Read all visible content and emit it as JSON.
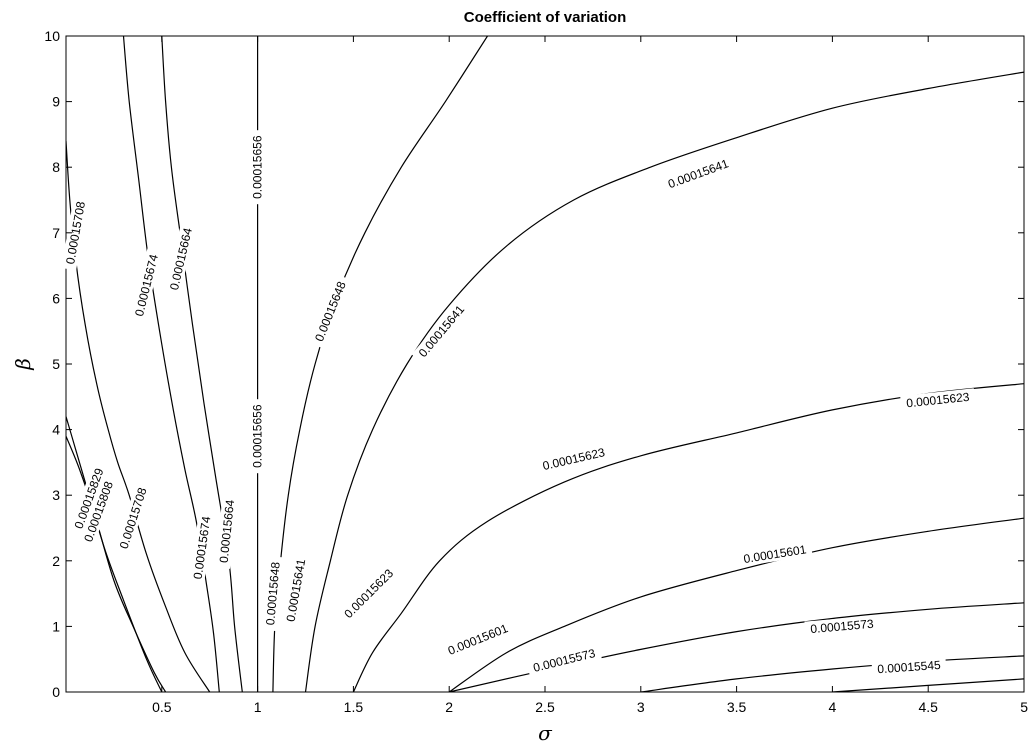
{
  "chart_data": {
    "type": "contour",
    "title": "Coefficient of variation",
    "xlabel": "σ",
    "ylabel": "β",
    "xlim": [
      0,
      5
    ],
    "ylim": [
      0,
      10
    ],
    "x_ticks": [
      "0.5",
      "1",
      "1.5",
      "2",
      "2.5",
      "3",
      "3.5",
      "4",
      "4.5",
      "5"
    ],
    "y_ticks": [
      "0",
      "1",
      "2",
      "3",
      "4",
      "5",
      "6",
      "7",
      "8",
      "9",
      "10"
    ],
    "grid": false,
    "contours": [
      {
        "level": "0.00015829",
        "points": [
          [
            0.0,
            4.2
          ],
          [
            0.05,
            3.7
          ],
          [
            0.1,
            3.2
          ],
          [
            0.2,
            2.2
          ],
          [
            0.3,
            1.4
          ],
          [
            0.42,
            0.5
          ],
          [
            0.5,
            0.0
          ]
        ],
        "labels": [
          {
            "text": "0.00015829",
            "x": 0.12,
            "y": 2.95,
            "angle": 70
          }
        ]
      },
      {
        "level": "0.00015808",
        "points": [
          [
            0.0,
            3.9
          ],
          [
            0.07,
            3.4
          ],
          [
            0.15,
            2.7
          ],
          [
            0.25,
            1.7
          ],
          [
            0.35,
            1.0
          ],
          [
            0.46,
            0.3
          ],
          [
            0.52,
            0.0
          ]
        ],
        "labels": [
          {
            "text": "0.00015808",
            "x": 0.17,
            "y": 2.75,
            "angle": 70
          }
        ]
      },
      {
        "level": "0.00015708",
        "points": [
          [
            0.0,
            8.4
          ],
          [
            0.02,
            7.5
          ],
          [
            0.05,
            6.6
          ],
          [
            0.1,
            5.6
          ],
          [
            0.16,
            4.7
          ],
          [
            0.22,
            4.0
          ],
          [
            0.27,
            3.5
          ],
          [
            0.33,
            3.0
          ],
          [
            0.42,
            2.1
          ],
          [
            0.52,
            1.3
          ],
          [
            0.62,
            0.6
          ],
          [
            0.75,
            0.0
          ]
        ],
        "labels": [
          {
            "text": "0.00015708",
            "x": 0.05,
            "y": 7.0,
            "angle": 80
          },
          {
            "text": "0.00015708",
            "x": 0.35,
            "y": 2.65,
            "angle": 72
          }
        ]
      },
      {
        "level": "0.00015674",
        "points": [
          [
            0.3,
            10.0
          ],
          [
            0.33,
            9.0
          ],
          [
            0.38,
            7.8
          ],
          [
            0.43,
            6.6
          ],
          [
            0.5,
            5.3
          ],
          [
            0.56,
            4.3
          ],
          [
            0.62,
            3.4
          ],
          [
            0.68,
            2.6
          ],
          [
            0.73,
            1.7
          ],
          [
            0.77,
            0.9
          ],
          [
            0.8,
            0.0
          ]
        ],
        "labels": [
          {
            "text": "0.00015674",
            "x": 0.42,
            "y": 6.2,
            "angle": 76
          },
          {
            "text": "0.00015674",
            "x": 0.71,
            "y": 2.2,
            "angle": 82
          }
        ]
      },
      {
        "level": "0.00015664",
        "points": [
          [
            0.5,
            10.0
          ],
          [
            0.52,
            9.0
          ],
          [
            0.55,
            8.0
          ],
          [
            0.6,
            6.9
          ],
          [
            0.66,
            5.6
          ],
          [
            0.72,
            4.4
          ],
          [
            0.78,
            3.3
          ],
          [
            0.85,
            2.0
          ],
          [
            0.88,
            1.0
          ],
          [
            0.92,
            0.0
          ]
        ],
        "labels": [
          {
            "text": "0.00015664",
            "x": 0.6,
            "y": 6.6,
            "angle": 77
          },
          {
            "text": "0.00015664",
            "x": 0.84,
            "y": 2.45,
            "angle": 84
          }
        ]
      },
      {
        "level": "0.00015656",
        "points": [
          [
            1.0,
            10.0
          ],
          [
            1.0,
            0.0
          ]
        ],
        "labels": [
          {
            "text": "0.00015656",
            "x": 1.0,
            "y": 8.0,
            "angle": 90
          },
          {
            "text": "0.00015656",
            "x": 1.0,
            "y": 3.9,
            "angle": 90
          }
        ]
      },
      {
        "level": "0.00015648",
        "points": [
          [
            1.08,
            0.0
          ],
          [
            1.09,
            1.0
          ],
          [
            1.12,
            2.0
          ],
          [
            1.16,
            3.0
          ],
          [
            1.22,
            4.0
          ],
          [
            1.3,
            5.0
          ],
          [
            1.41,
            6.0
          ],
          [
            1.56,
            7.0
          ],
          [
            1.75,
            8.0
          ],
          [
            1.98,
            9.0
          ],
          [
            2.2,
            10.0
          ]
        ],
        "labels": [
          {
            "text": "0.00015648",
            "x": 1.38,
            "y": 5.8,
            "angle": 68
          },
          {
            "text": "0.00015648",
            "x": 1.08,
            "y": 1.5,
            "angle": 85
          }
        ]
      },
      {
        "level": "0.00015641",
        "points": [
          [
            1.25,
            0.0
          ],
          [
            1.3,
            1.0
          ],
          [
            1.38,
            2.0
          ],
          [
            1.47,
            3.0
          ],
          [
            1.6,
            4.0
          ],
          [
            1.78,
            5.0
          ],
          [
            2.0,
            5.9
          ],
          [
            2.3,
            6.8
          ],
          [
            2.65,
            7.5
          ],
          [
            3.05,
            8.0
          ],
          [
            3.5,
            8.45
          ],
          [
            4.0,
            8.9
          ],
          [
            4.5,
            9.2
          ],
          [
            5.0,
            9.45
          ]
        ],
        "labels": [
          {
            "text": "0.00015641",
            "x": 1.2,
            "y": 1.55,
            "angle": 80
          },
          {
            "text": "0.00015641",
            "x": 1.96,
            "y": 5.5,
            "angle": 50
          },
          {
            "text": "0.00015641",
            "x": 3.3,
            "y": 7.9,
            "angle": 20
          }
        ]
      },
      {
        "level": "0.00015623",
        "points": [
          [
            1.5,
            0.0
          ],
          [
            1.6,
            0.6
          ],
          [
            1.75,
            1.2
          ],
          [
            1.95,
            2.0
          ],
          [
            2.2,
            2.6
          ],
          [
            2.6,
            3.2
          ],
          [
            3.0,
            3.6
          ],
          [
            3.5,
            3.95
          ],
          [
            4.0,
            4.3
          ],
          [
            4.5,
            4.55
          ],
          [
            5.0,
            4.7
          ]
        ],
        "labels": [
          {
            "text": "0.00015623",
            "x": 1.58,
            "y": 1.5,
            "angle": 45
          },
          {
            "text": "0.00015623",
            "x": 2.65,
            "y": 3.55,
            "angle": 13
          },
          {
            "text": "0.00015623",
            "x": 4.55,
            "y": 4.45,
            "angle": 6
          }
        ]
      },
      {
        "level": "0.00015601",
        "points": [
          [
            2.0,
            0.0
          ],
          [
            2.3,
            0.6
          ],
          [
            2.6,
            1.0
          ],
          [
            3.0,
            1.45
          ],
          [
            3.5,
            1.85
          ],
          [
            4.0,
            2.2
          ],
          [
            4.5,
            2.45
          ],
          [
            5.0,
            2.65
          ]
        ],
        "labels": [
          {
            "text": "0.00015601",
            "x": 2.15,
            "y": 0.8,
            "angle": 22
          },
          {
            "text": "0.00015601",
            "x": 3.7,
            "y": 2.1,
            "angle": 9
          }
        ]
      },
      {
        "level": "0.00015573",
        "points": [
          [
            2.0,
            0.0
          ],
          [
            2.6,
            0.4
          ],
          [
            3.0,
            0.65
          ],
          [
            3.5,
            0.92
          ],
          [
            4.0,
            1.12
          ],
          [
            4.5,
            1.26
          ],
          [
            5.0,
            1.36
          ]
        ],
        "labels": [
          {
            "text": "0.00015573",
            "x": 2.6,
            "y": 0.48,
            "angle": 14
          },
          {
            "text": "0.00015573",
            "x": 4.05,
            "y": 1.0,
            "angle": 5
          }
        ]
      },
      {
        "level": "0.00015545",
        "points": [
          [
            3.0,
            0.0
          ],
          [
            3.5,
            0.2
          ],
          [
            4.0,
            0.35
          ],
          [
            4.5,
            0.47
          ],
          [
            5.0,
            0.55
          ]
        ],
        "labels": [
          {
            "text": "0.00015545",
            "x": 4.4,
            "y": 0.38,
            "angle": 4
          }
        ]
      },
      {
        "level": "",
        "points": [
          [
            4.0,
            0.0
          ],
          [
            4.5,
            0.1
          ],
          [
            5.0,
            0.2
          ]
        ],
        "labels": []
      }
    ]
  }
}
